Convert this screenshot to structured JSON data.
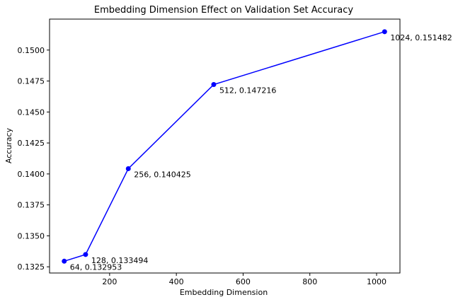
{
  "chart_data": {
    "type": "line",
    "title": "Embedding Dimension Effect on Validation Set Accuracy",
    "xlabel": "Embedding Dimension",
    "ylabel": "Accuracy",
    "xlim": [
      20,
      1070
    ],
    "ylim": [
      0.132,
      0.1525
    ],
    "x_ticks": [
      200,
      400,
      600,
      800,
      1000
    ],
    "y_ticks": [
      0.1325,
      0.135,
      0.1375,
      0.14,
      0.1425,
      0.145,
      0.1475,
      0.15
    ],
    "grid": false,
    "series": [
      {
        "x": [
          64,
          128,
          256,
          512,
          1024
        ],
        "y": [
          0.132953,
          0.133494,
          0.140425,
          0.147216,
          0.151482
        ],
        "color": "#0000ff",
        "marker": "circle"
      }
    ],
    "annotations": [
      "64, 0.132953",
      "128, 0.133494",
      "256, 0.140425",
      "512, 0.147216",
      "1024, 0.151482"
    ]
  }
}
